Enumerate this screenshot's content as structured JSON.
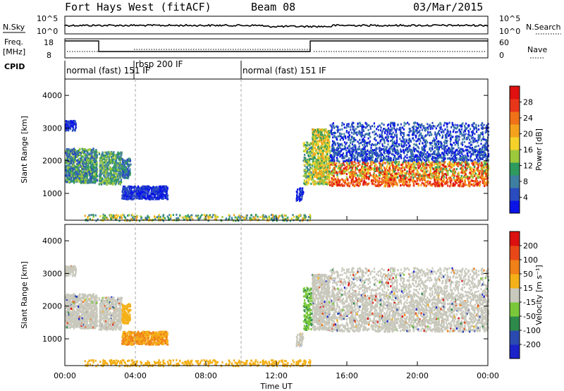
{
  "header": {
    "station": "Fort Hays West (fitACF)",
    "beam": "Beam 08",
    "date": "03/Mar/2015"
  },
  "top_panels": {
    "nsky_label": "N.Sky",
    "nsky_ticks": [
      "10^5",
      "10^0"
    ],
    "nsearch_label": "N.Search",
    "nsearch_ticks": [
      "10^5",
      "10^0"
    ],
    "freq_label_1": "Freq.",
    "freq_label_2": "[MHz]",
    "freq_ticks": [
      "18",
      "8"
    ],
    "nave_label": "Nave",
    "nave_ticks": [
      "60",
      "0"
    ],
    "cpid_label": "CPID",
    "cpid_segments": [
      {
        "label": "normal (fast) 151 IF",
        "start_h": 0,
        "end_h": 3.7
      },
      {
        "label": "rbsp 200 IF",
        "start_h": 3.7,
        "end_h": 10
      },
      {
        "label": "normal (fast) 151 IF",
        "start_h": 10,
        "end_h": 24
      }
    ]
  },
  "chart_data": [
    {
      "type": "heatmap",
      "name": "power",
      "ylabel": "Slant Range [km]",
      "yticks": [
        "1000",
        "2000",
        "3000",
        "4000"
      ],
      "ylim": [
        180,
        4500
      ],
      "colorbar_label": "Power [dB]",
      "colorbar_ticks": [
        "4",
        "8",
        "12",
        "16",
        "20",
        "24",
        "28"
      ],
      "colors": [
        "#0a14e6",
        "#2a4cc0",
        "#3e7ea0",
        "#2e9a5e",
        "#9cc83c",
        "#f4d22a",
        "#f4a21e",
        "#f07218",
        "#e8361a",
        "#e01010"
      ]
    },
    {
      "type": "heatmap",
      "name": "velocity",
      "ylabel": "Slant Range [km]",
      "yticks": [
        "1000",
        "2000",
        "3000",
        "4000"
      ],
      "ylim": [
        180,
        4500
      ],
      "xlabel": "Time UT",
      "xticks": [
        "00:00",
        "04:00",
        "08:00",
        "12:00",
        "16:00",
        "20:00",
        "00:00"
      ],
      "xlim": [
        0,
        24
      ],
      "colorbar_label": "Velocity [m s⁻¹]",
      "colorbar_ticks": [
        "200",
        "100",
        "50",
        "15",
        "-15",
        "-50",
        "-100",
        "-200"
      ],
      "colors": [
        "#1a22c8",
        "#2a4ab0",
        "#2e8a4a",
        "#7ac83a",
        "#c8c8bc",
        "#f4b018",
        "#f08018",
        "#e84818",
        "#dc1010"
      ]
    }
  ]
}
